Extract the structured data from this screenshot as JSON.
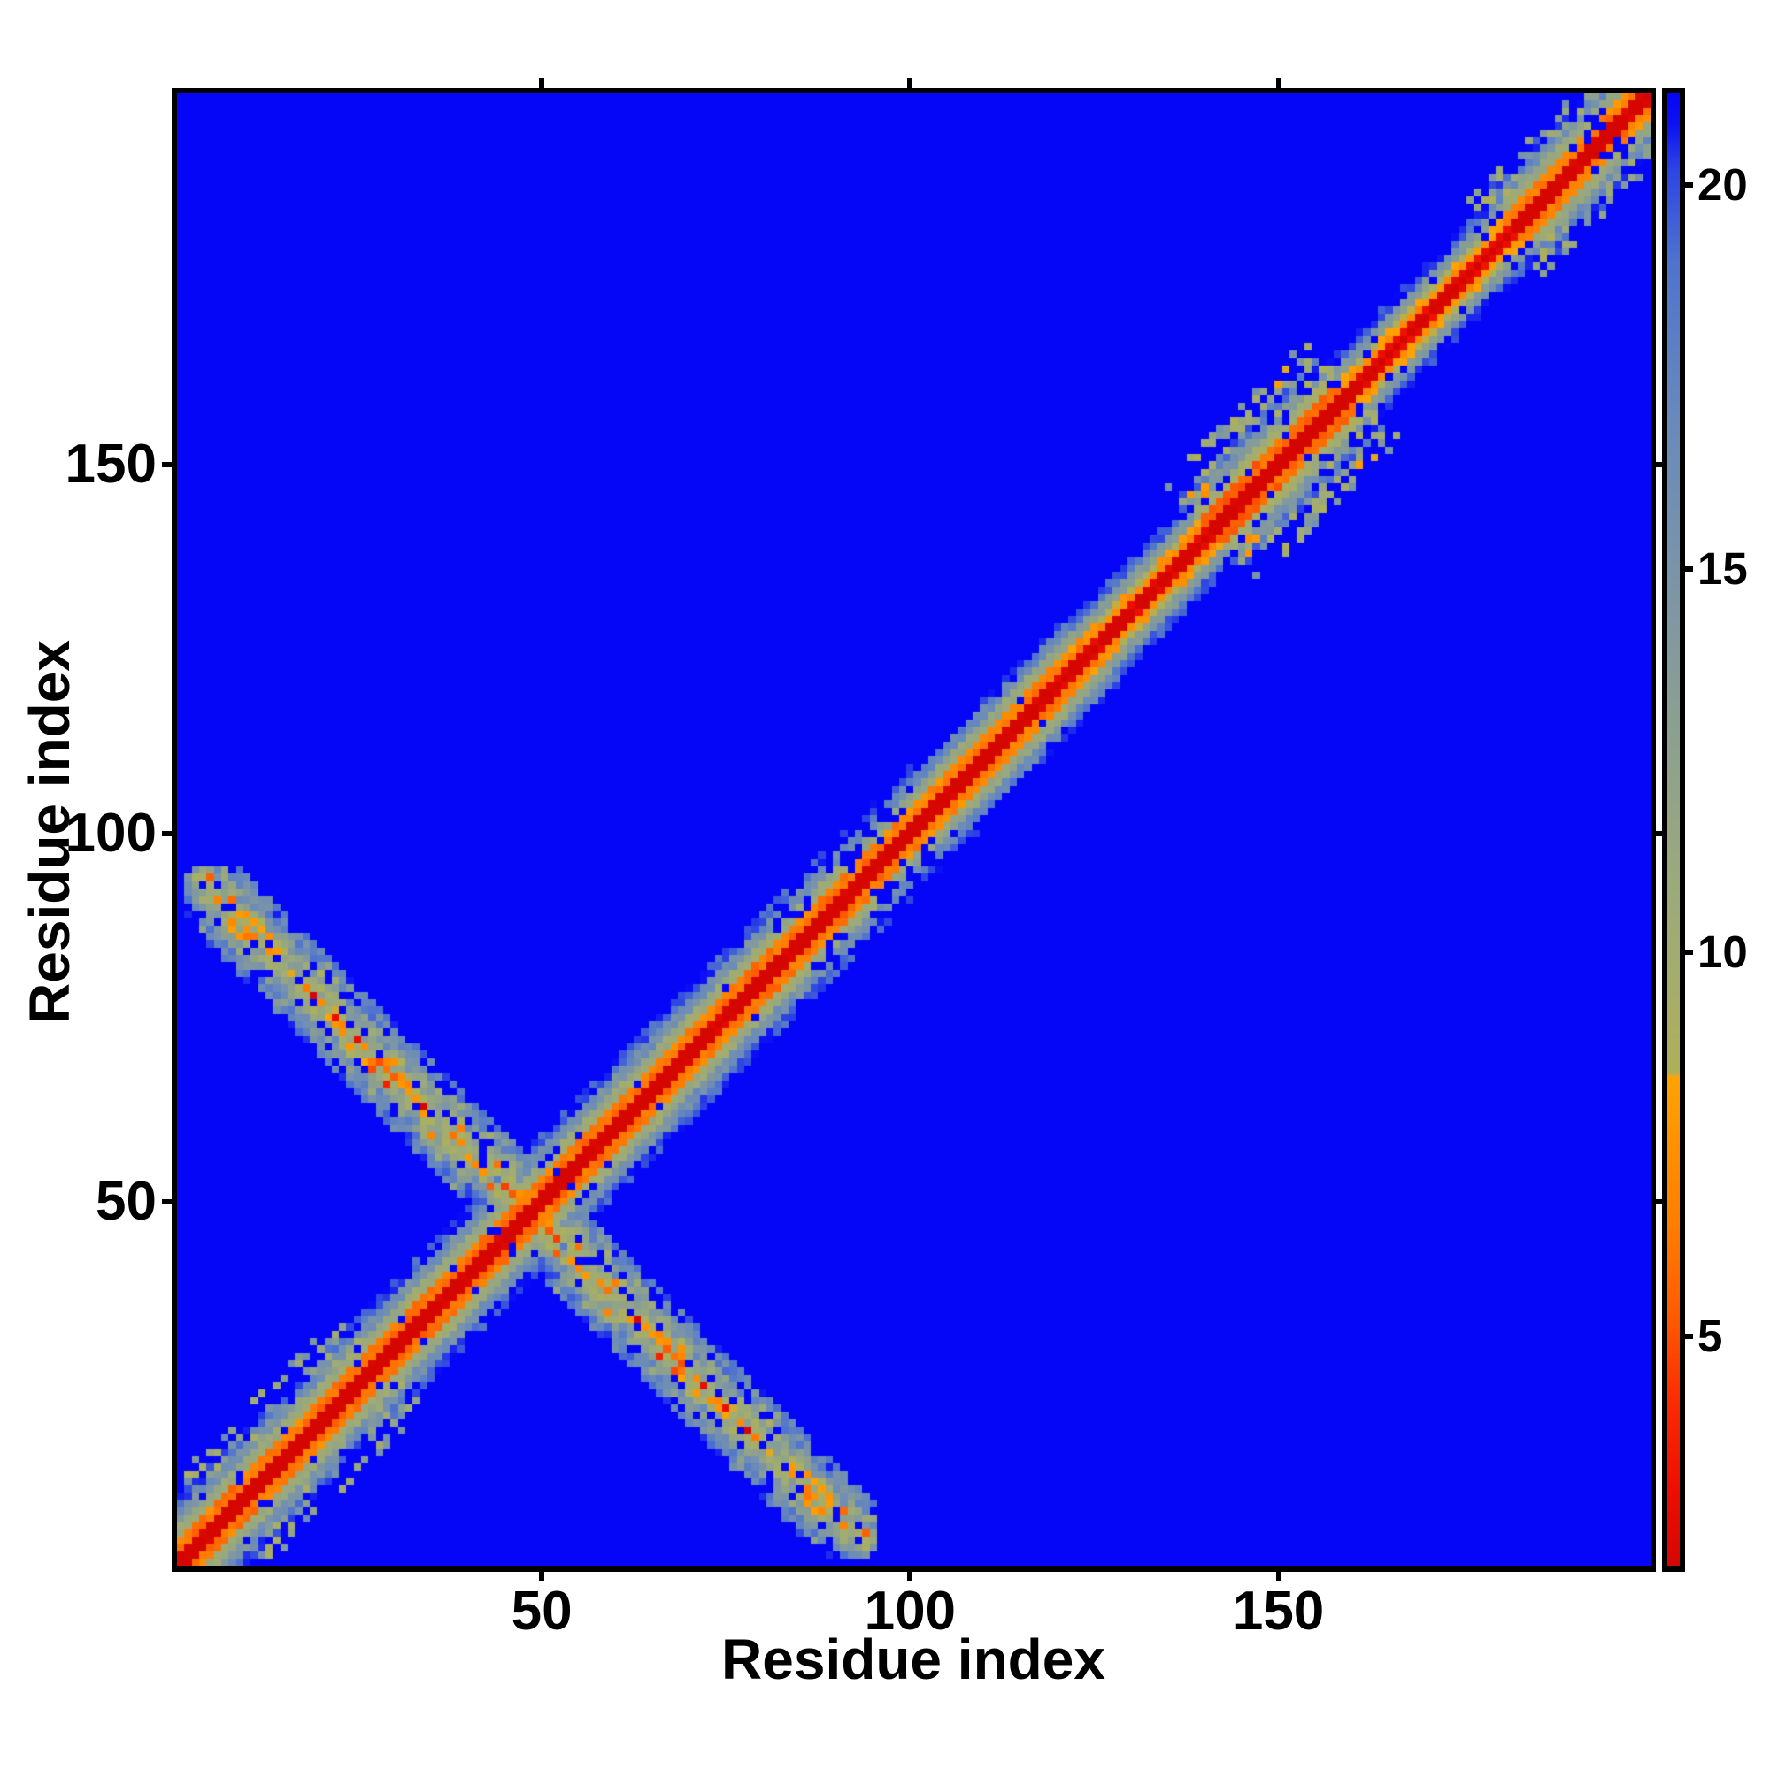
{
  "page": {
    "background_color": "#ffffff",
    "frame_color": "#000000",
    "text_color": "#000000"
  },
  "chart_data": {
    "type": "heatmap",
    "title": "",
    "xlabel": "Residue index",
    "ylabel": "Residue index",
    "n_residues": 200,
    "x_range": [
      0.5,
      200.5
    ],
    "y_range": [
      0.5,
      200.5
    ],
    "grid": false,
    "x_ticks": [
      {
        "value": 50,
        "label": "50"
      },
      {
        "value": 100,
        "label": "100"
      },
      {
        "value": 150,
        "label": "150"
      }
    ],
    "y_ticks": [
      {
        "value": 50,
        "label": "50"
      },
      {
        "value": 100,
        "label": "100"
      },
      {
        "value": 150,
        "label": "150"
      }
    ],
    "background_value_color": "#0505f8",
    "colorbar": {
      "position": "right",
      "vmin": 2.0,
      "vmax": 21.2,
      "ticks": [
        {
          "value": 5,
          "label": "5"
        },
        {
          "value": 10,
          "label": "10"
        },
        {
          "value": 15,
          "label": "15"
        },
        {
          "value": 20,
          "label": "20"
        }
      ]
    },
    "colormap_stops": [
      [
        2.0,
        "#d50600"
      ],
      [
        3.0,
        "#ee0d00"
      ],
      [
        4.2,
        "#fc2d00"
      ],
      [
        5.2,
        "#ff5800"
      ],
      [
        6.4,
        "#ff7c00"
      ],
      [
        7.6,
        "#ff9300"
      ],
      [
        8.38,
        "#ffa403"
      ],
      [
        8.44,
        "#aeb058"
      ],
      [
        9.6,
        "#a5ad6c"
      ],
      [
        11.0,
        "#9ba97c"
      ],
      [
        13.0,
        "#8b9f91"
      ],
      [
        15.0,
        "#7a94a9"
      ],
      [
        17.0,
        "#6889bb"
      ],
      [
        19.0,
        "#4f73cf"
      ],
      [
        20.2,
        "#2e45e3"
      ],
      [
        20.8,
        "#0d12f3"
      ],
      [
        21.2,
        "#0505f8"
      ]
    ],
    "matrix_model": {
      "kind": "protein_distance_map_symmetric",
      "seed": 7,
      "diagonal": {
        "d0": 0.4,
        "slope": 2.35,
        "parity_amp": 0.9,
        "noise_fine": [
          0.35,
          0.14
        ],
        "noise_coarse": [
          0.15,
          0.1
        ],
        "width_factors": [
          {
            "from": 96,
            "to": 125,
            "factor": 1.08
          },
          {
            "from": 125,
            "to": 141,
            "factor": 1.25
          },
          {
            "from": 141,
            "to": 160,
            "factor": 0.92
          },
          {
            "from": 160,
            "to": 182,
            "factor": 1.3
          },
          {
            "from": 182,
            "to": 201,
            "factor": 1.05
          }
        ]
      },
      "antidiagonal": {
        "center_sum": 97,
        "i_min": 2,
        "i_max": 95,
        "half_width": 7.5,
        "base": 8.6,
        "slope": 1.5,
        "noise_fine": 2.6,
        "noise_coarse": 1.9,
        "parity_amp": 0.5,
        "end_fade_start": 8,
        "end_fade_rate": 0.35,
        "orange_prob": 0.15,
        "orange_drop": 3.6,
        "hole_prob": 0.12
      },
      "speckle_blobs": [
        {
          "from": 2,
          "to": 28,
          "k_min": 6,
          "k_max": 12,
          "prob": 0.3,
          "base": 13.0,
          "spread": 4.0,
          "seed": 21
        },
        {
          "from": 141,
          "to": 160,
          "k_min": 6,
          "k_max": 13,
          "prob": 0.42,
          "base": 11.5,
          "spread": 4.2,
          "seed": 22
        },
        {
          "from": 181,
          "to": 197,
          "k_min": 4,
          "k_max": 10,
          "prob": 0.4,
          "base": 12.0,
          "spread": 4.0,
          "seed": 23
        }
      ],
      "holes": [
        {
          "from": 85,
          "to": 100,
          "k_min": 3,
          "k_max": 8,
          "prob": 0.3,
          "seed": 31
        },
        {
          "from": 44,
          "to": 58,
          "k_min": 2,
          "k_max": 6,
          "prob": 0.1,
          "seed": 32
        },
        {
          "from": 140,
          "to": 161,
          "k_min": 2,
          "k_max": 8,
          "prob": 0.12,
          "seed": 33
        },
        {
          "from": 181,
          "to": 197,
          "k_min": 2,
          "k_max": 7,
          "prob": 0.1,
          "seed": 34
        },
        {
          "from": 0,
          "to": 201,
          "k_min": 3,
          "k_max": 9,
          "prob": 0.035,
          "seed": 35
        }
      ]
    }
  }
}
